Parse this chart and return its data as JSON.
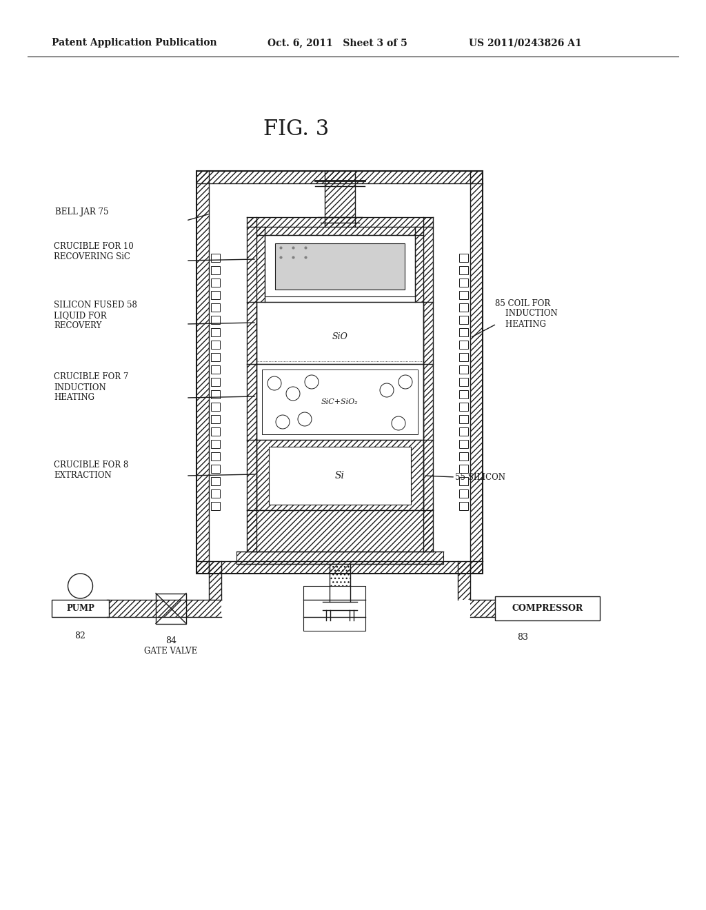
{
  "bg_color": "#ffffff",
  "header_left": "Patent Application Publication",
  "header_mid": "Oct. 6, 2011   Sheet 3 of 5",
  "header_right": "US 2011/0243826 A1",
  "fig_title": "FIG. 3",
  "labels": {
    "bell_jar": "BELL JAR 75",
    "crucible_sic": "CRUCIBLE FOR 10\nRECOVERING SiC",
    "silicon_fused": "SILICON FUSED 58\nLIQUID FOR\nRECOVERY",
    "crucible_ind": "CRUCIBLE FOR 7\nINDUCTION\nHEATING",
    "crucible_ext": "CRUCIBLE FOR 8\nEXTRACTION",
    "coil": "85 COIL FOR\n    INDUCTION\n    HEATING",
    "silicon": "55 SILICON",
    "pump": "PUMP",
    "pump_num": "82",
    "gate_valve": "84\nGATE VALVE",
    "compressor": "COMPRESSOR",
    "comp_num": "83",
    "sio": "SiO",
    "sic_sio2": "SiC+SiO₂",
    "si": "Si"
  }
}
